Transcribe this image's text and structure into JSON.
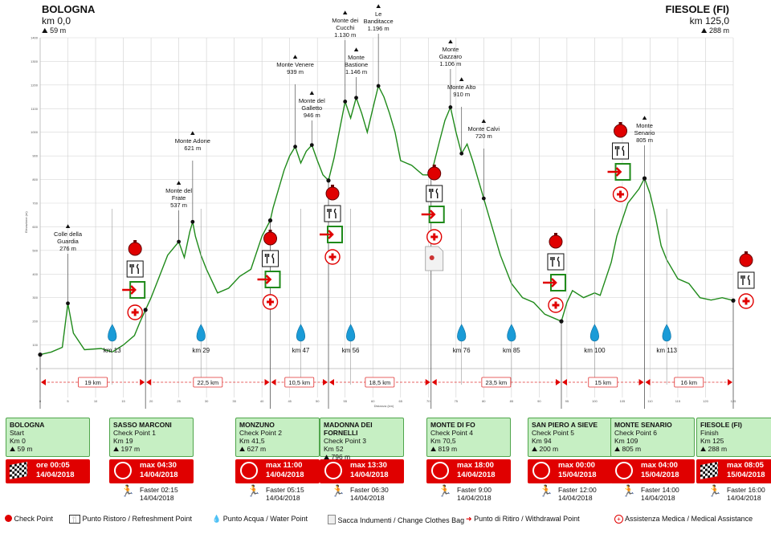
{
  "start": {
    "name": "BOLOGNA",
    "km": "km 0,0",
    "alt": "59 m"
  },
  "finish": {
    "name": "FIESOLE (FI)",
    "km": "km 125,0",
    "alt": "288 m"
  },
  "chart_data": {
    "type": "line",
    "xlabel": "Distanza (km)",
    "ylabel": "Elevazione (m)",
    "xlim": [
      0,
      125
    ],
    "ylim": [
      0,
      1400
    ],
    "x_ticks": [
      0,
      5,
      10,
      15,
      20,
      25,
      30,
      35,
      40,
      45,
      50,
      55,
      60,
      65,
      70,
      75,
      80,
      85,
      90,
      95,
      100,
      105,
      110,
      115,
      120,
      125
    ],
    "y_ticks": [
      0,
      100,
      200,
      300,
      400,
      500,
      600,
      700,
      800,
      900,
      1000,
      1100,
      1200,
      1300,
      1400
    ],
    "profile": [
      [
        0,
        59
      ],
      [
        2,
        70
      ],
      [
        4,
        90
      ],
      [
        5,
        276
      ],
      [
        6,
        150
      ],
      [
        8,
        80
      ],
      [
        11,
        85
      ],
      [
        13,
        70
      ],
      [
        15,
        100
      ],
      [
        17,
        140
      ],
      [
        18,
        197
      ],
      [
        20,
        300
      ],
      [
        21,
        360
      ],
      [
        23,
        480
      ],
      [
        25,
        537
      ],
      [
        26,
        470
      ],
      [
        27,
        580
      ],
      [
        27.5,
        621
      ],
      [
        28,
        560
      ],
      [
        29,
        480
      ],
      [
        30,
        420
      ],
      [
        31,
        370
      ],
      [
        32,
        320
      ],
      [
        34,
        340
      ],
      [
        36,
        390
      ],
      [
        38,
        420
      ],
      [
        40,
        560
      ],
      [
        41.5,
        627
      ],
      [
        42,
        680
      ],
      [
        44,
        840
      ],
      [
        45,
        900
      ],
      [
        46,
        939
      ],
      [
        47,
        870
      ],
      [
        48,
        920
      ],
      [
        49,
        946
      ],
      [
        50,
        880
      ],
      [
        51,
        820
      ],
      [
        52,
        796
      ],
      [
        53,
        890
      ],
      [
        55,
        1130
      ],
      [
        56,
        1060
      ],
      [
        57,
        1146
      ],
      [
        58,
        1080
      ],
      [
        59,
        1000
      ],
      [
        60,
        1100
      ],
      [
        61,
        1196
      ],
      [
        62,
        1150
      ],
      [
        63,
        1080
      ],
      [
        64,
        1000
      ],
      [
        65,
        880
      ],
      [
        67,
        860
      ],
      [
        69,
        820
      ],
      [
        70.5,
        819
      ],
      [
        72,
        960
      ],
      [
        73,
        1050
      ],
      [
        74,
        1106
      ],
      [
        75,
        1000
      ],
      [
        76,
        910
      ],
      [
        77,
        950
      ],
      [
        78,
        880
      ],
      [
        79,
        800
      ],
      [
        80,
        720
      ],
      [
        81,
        640
      ],
      [
        82,
        560
      ],
      [
        83,
        480
      ],
      [
        85,
        360
      ],
      [
        87,
        300
      ],
      [
        89,
        280
      ],
      [
        91,
        230
      ],
      [
        93,
        210
      ],
      [
        94,
        200
      ],
      [
        95,
        280
      ],
      [
        96,
        330
      ],
      [
        98,
        300
      ],
      [
        100,
        320
      ],
      [
        101,
        310
      ],
      [
        103,
        450
      ],
      [
        104,
        560
      ],
      [
        106,
        700
      ],
      [
        108,
        760
      ],
      [
        109,
        805
      ],
      [
        110,
        740
      ],
      [
        111,
        640
      ],
      [
        112,
        520
      ],
      [
        113,
        460
      ],
      [
        115,
        380
      ],
      [
        117,
        360
      ],
      [
        119,
        300
      ],
      [
        121,
        290
      ],
      [
        123,
        300
      ],
      [
        125,
        288
      ]
    ],
    "peaks": [
      {
        "name": "Colle della Guardia",
        "alt": "276 m",
        "km": 5,
        "m": 276
      },
      {
        "name": "Monte del Frate",
        "alt": "537 m",
        "km": 25,
        "m": 537
      },
      {
        "name": "Monte Adone",
        "alt": "621 m",
        "km": 27.5,
        "m": 621
      },
      {
        "name": "Monte Venere",
        "alt": "939 m",
        "km": 46,
        "m": 939
      },
      {
        "name": "Monte del Galletto",
        "alt": "946 m",
        "km": 49,
        "m": 946
      },
      {
        "name": "Monte dei Cucchi",
        "alt": "1.130 m",
        "km": 55,
        "m": 1130
      },
      {
        "name": "Monte Bastione",
        "alt": "1.146 m",
        "km": 57,
        "m": 1146
      },
      {
        "name": "Le Banditacce",
        "alt": "1.196 m",
        "km": 61,
        "m": 1196
      },
      {
        "name": "Monte Gazzaro",
        "alt": "1.106 m",
        "km": 74,
        "m": 1106
      },
      {
        "name": "Monte Alto",
        "alt": "910 m",
        "km": 76,
        "m": 910
      },
      {
        "name": "Monte Calvi",
        "alt": "720 m",
        "km": 80,
        "m": 720
      },
      {
        "name": "Monte Senario",
        "alt": "805 m",
        "km": 109,
        "m": 805
      }
    ],
    "checkpoints_km": [
      0,
      19,
      41.5,
      52,
      70.5,
      94,
      109,
      125
    ],
    "water_km": [
      "13",
      "29",
      "47",
      "56",
      "76",
      "85",
      "100",
      "113"
    ],
    "segments": [
      {
        "from": 0,
        "to": 19,
        "label": "19 km"
      },
      {
        "from": 19,
        "to": 41.5,
        "label": "22,5 km"
      },
      {
        "from": 41.5,
        "to": 52,
        "label": "10,5 km"
      },
      {
        "from": 52,
        "to": 70.5,
        "label": "18,5 km"
      },
      {
        "from": 70.5,
        "to": 94,
        "label": "23,5 km"
      },
      {
        "from": 94,
        "to": 109,
        "label": "15 km"
      },
      {
        "from": 109,
        "to": 125,
        "label": "16 km"
      }
    ],
    "km_prefix": "km"
  },
  "checkpoints": [
    {
      "name": "BOLOGNA",
      "role": "Start",
      "km": "Km 0",
      "alt": "59 m",
      "time": "ore 00:05",
      "date": "14/04/2018",
      "flag": true
    },
    {
      "name": "SASSO MARCONI",
      "role": "Check Point 1",
      "km": "Km 19",
      "alt": "197 m",
      "time": "max 04:30",
      "date": "14/04/2018",
      "fast": "Faster 02:15",
      "fast_date": "14/04/2018"
    },
    {
      "name": "MONZUNO",
      "role": "Check Point 2",
      "km": "Km 41,5",
      "alt": "627 m",
      "time": "max 11:00",
      "date": "14/04/2018",
      "fast": "Faster 05:15",
      "fast_date": "14/04/2018"
    },
    {
      "name": "MADONNA DEI FORNELLI",
      "role": "Check Point 3",
      "km": "Km 52",
      "alt": "796 m",
      "time": "max 13:30",
      "date": "14/04/2018",
      "fast": "Faster 06:30",
      "fast_date": "14/04/2018"
    },
    {
      "name": "MONTE DI FO",
      "role": "Check Point 4",
      "km": "Km 70,5",
      "alt": "819 m",
      "time": "max 18:00",
      "date": "14/04/2018",
      "fast": "Faster 9:00",
      "fast_date": "14/04/2018"
    },
    {
      "name": "SAN PIERO A SIEVE",
      "role": "Check Point 5",
      "km": "Km 94",
      "alt": "200 m",
      "time": "max 00:00",
      "date": "15/04/2018",
      "fast": "Faster 12:00",
      "fast_date": "14/04/2018"
    },
    {
      "name": "MONTE SENARIO",
      "role": "Check Point 6",
      "km": "Km 109",
      "alt": "805 m",
      "time": "max 04:00",
      "date": "15/04/2018",
      "fast": "Faster 14:00",
      "fast_date": "14/04/2018"
    },
    {
      "name": "FIESOLE (FI)",
      "role": "Finish",
      "km": "Km 125",
      "alt": "288 m",
      "time": "max 08:05",
      "date": "15/04/2018",
      "flag": true,
      "fast": "Faster 16:00",
      "fast_date": "14/04/2018"
    }
  ],
  "legend": {
    "checkpoint": "Check Point",
    "refresh": "Punto Ristoro / Refreshment Point",
    "water": "Punto Acqua / Water Point",
    "bag": "Sacca Indumenti / Change Clothes Bag",
    "withdraw": "Punto di Ritiro / Withdrawal Point",
    "medical": "Assistenza Medica / Medical Assistance"
  },
  "colors": {
    "line": "#1f8a1a",
    "red": "#e00000",
    "green": "#4fa54b",
    "box": "#c6efc3",
    "water": "#1a9bd7"
  }
}
